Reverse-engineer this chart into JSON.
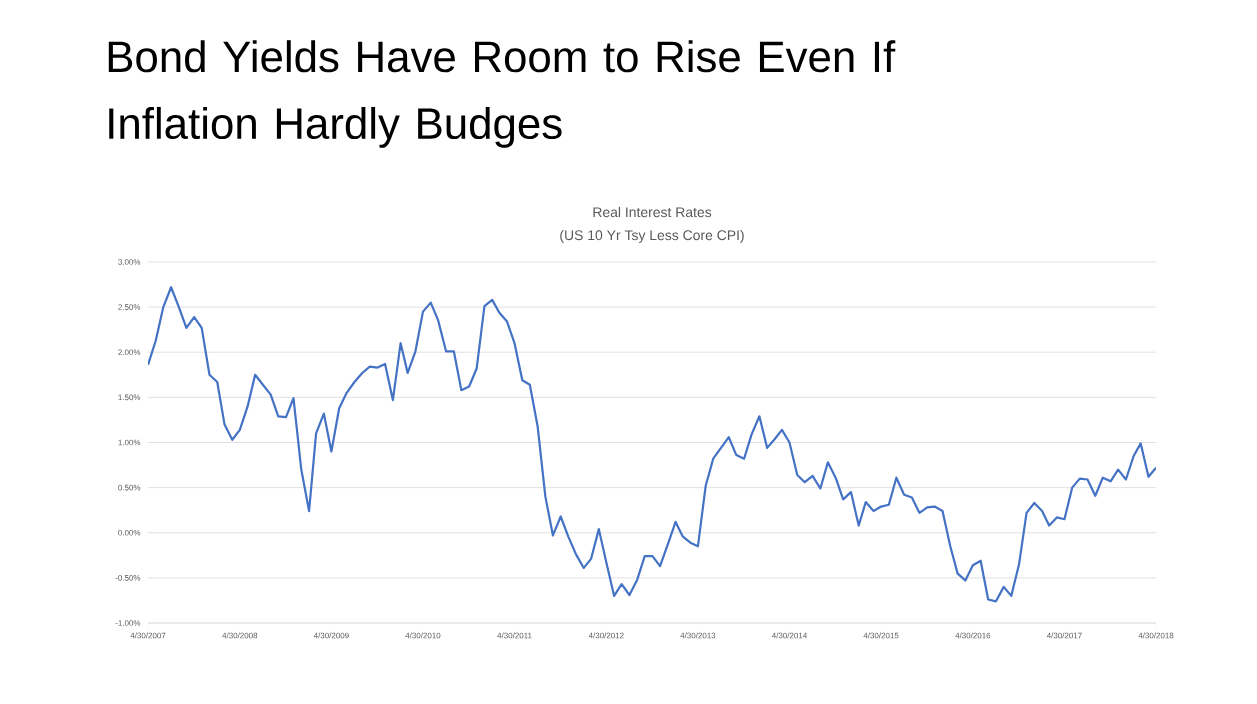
{
  "chart_data": {
    "type": "line",
    "title": "Bond Yields Have Room to Rise Even If Inflation Hardly Budges",
    "subtitle": "Real Interest Rates",
    "annotations": [
      "(US 10 Yr Tsy Less Core CPI)"
    ],
    "color": "#4472c4",
    "grid": "y",
    "xlim": [
      "2007-04-30",
      "2018-04-30"
    ],
    "xticks": [
      {
        "value": "2007-04-30",
        "label": "4/30/2007"
      },
      {
        "value": "2008-04-30",
        "label": "4/30/2008"
      },
      {
        "value": "2009-04-30",
        "label": "4/30/2009"
      },
      {
        "value": "2010-04-30",
        "label": "4/30/2010"
      },
      {
        "value": "2011-04-30",
        "label": "4/30/2011"
      },
      {
        "value": "2012-04-30",
        "label": "4/30/2012"
      },
      {
        "value": "2013-04-30",
        "label": "4/30/2013"
      },
      {
        "value": "2014-04-30",
        "label": "4/30/2014"
      },
      {
        "value": "2015-04-30",
        "label": "4/30/2015"
      },
      {
        "value": "2016-04-30",
        "label": "4/30/2016"
      },
      {
        "value": "2017-04-30",
        "label": "4/30/2017"
      },
      {
        "value": "2018-04-30",
        "label": "4/30/2018"
      }
    ],
    "ylim": [
      -1,
      3
    ],
    "yticks": [
      {
        "value": 3,
        "label": "3.00%"
      },
      {
        "value": 2.5,
        "label": "2.50%"
      },
      {
        "value": 2,
        "label": "2.00%"
      },
      {
        "value": 1.5,
        "label": "1.50%"
      },
      {
        "value": 1,
        "label": "1.00%"
      },
      {
        "value": 0.5,
        "label": "0.50%"
      },
      {
        "value": 0,
        "label": "0.00%"
      },
      {
        "value": -0.5,
        "label": "-0.50%"
      },
      {
        "value": -1,
        "label": "-1.00%"
      }
    ],
    "x": [
      "2007-04-30",
      "2007-05-31",
      "2007-06-30",
      "2007-07-31",
      "2007-08-31",
      "2007-09-30",
      "2007-10-31",
      "2007-11-30",
      "2007-12-31",
      "2008-01-31",
      "2008-02-29",
      "2008-03-31",
      "2008-04-30",
      "2008-05-31",
      "2008-06-30",
      "2008-07-31",
      "2008-08-31",
      "2008-09-30",
      "2008-10-31",
      "2008-11-30",
      "2008-12-31",
      "2009-01-31",
      "2009-02-28",
      "2009-03-31",
      "2009-04-30",
      "2009-05-31",
      "2009-06-30",
      "2009-07-31",
      "2009-08-31",
      "2009-09-30",
      "2009-10-31",
      "2009-11-30",
      "2009-12-31",
      "2010-01-31",
      "2010-02-28",
      "2010-03-31",
      "2010-04-30",
      "2010-05-31",
      "2010-06-30",
      "2010-07-31",
      "2010-08-31",
      "2010-09-30",
      "2010-10-31",
      "2010-11-30",
      "2010-12-15",
      "2010-12-31",
      "2011-01-31",
      "2011-02-28",
      "2011-03-31",
      "2011-04-30",
      "2011-05-31",
      "2011-06-30",
      "2011-07-31",
      "2011-08-31",
      "2011-09-30",
      "2011-10-31",
      "2011-11-30",
      "2011-12-31",
      "2012-01-31",
      "2012-02-29",
      "2012-03-31",
      "2012-04-30",
      "2012-05-31",
      "2012-06-30",
      "2012-07-31",
      "2012-08-31",
      "2012-09-30",
      "2012-10-31",
      "2012-11-30",
      "2012-12-31",
      "2013-01-31",
      "2013-02-28",
      "2013-03-31",
      "2013-04-30",
      "2013-05-31",
      "2013-06-30",
      "2013-07-31",
      "2013-08-31",
      "2013-09-30",
      "2013-10-31",
      "2013-11-30",
      "2013-12-31",
      "2014-01-31",
      "2014-02-28",
      "2014-03-31",
      "2014-04-30",
      "2014-05-31",
      "2014-06-30",
      "2014-07-31",
      "2014-08-31",
      "2014-09-30",
      "2014-10-31",
      "2014-11-30",
      "2014-12-31",
      "2015-01-31",
      "2015-02-28",
      "2015-03-31",
      "2015-04-30",
      "2015-05-31",
      "2015-06-30",
      "2015-07-31",
      "2015-08-31",
      "2015-09-30",
      "2015-10-31",
      "2015-11-30",
      "2015-12-31",
      "2016-01-31",
      "2016-02-29",
      "2016-03-31",
      "2016-04-30",
      "2016-05-31",
      "2016-06-30",
      "2016-07-31",
      "2016-08-31",
      "2016-09-30",
      "2016-10-31",
      "2016-11-30",
      "2016-12-31",
      "2017-01-31",
      "2017-02-28",
      "2017-03-31",
      "2017-04-30",
      "2017-05-31",
      "2017-06-30",
      "2017-07-31",
      "2017-08-31",
      "2017-09-30",
      "2017-10-31",
      "2017-11-30",
      "2017-12-31",
      "2018-01-31",
      "2018-02-28",
      "2018-03-31",
      "2018-04-30"
    ],
    "values": [
      1.86,
      2.13,
      2.5,
      2.72,
      2.5,
      2.27,
      2.39,
      2.27,
      1.75,
      1.67,
      1.2,
      1.03,
      1.14,
      1.4,
      1.75,
      1.64,
      1.53,
      1.29,
      1.28,
      1.49,
      0.7,
      0.24,
      1.1,
      1.32,
      0.9,
      1.38,
      1.55,
      1.67,
      1.77,
      1.84,
      1.83,
      1.87,
      1.47,
      2.1,
      1.77,
      2.01,
      2.45,
      2.55,
      2.35,
      2.01,
      2.01,
      1.58,
      1.62,
      1.82,
      2.15,
      2.51,
      2.58,
      2.44,
      2.34,
      2.1,
      1.69,
      1.64,
      1.18,
      0.4,
      -0.03,
      0.18,
      -0.04,
      -0.24,
      -0.39,
      -0.29,
      0.04,
      -0.33,
      -0.7,
      -0.57,
      -0.69,
      -0.52,
      -0.26,
      -0.26,
      -0.37,
      -0.13,
      0.12,
      -0.04,
      -0.11,
      -0.15,
      0.52,
      0.82,
      0.94,
      1.06,
      0.86,
      0.82,
      1.09,
      1.29,
      0.94,
      1.03,
      1.14,
      1.0,
      0.64,
      0.56,
      0.63,
      0.49,
      0.78,
      0.61,
      0.37,
      0.45,
      0.08,
      0.34,
      0.24,
      0.29,
      0.31,
      0.61,
      0.42,
      0.39,
      0.22,
      0.28,
      0.29,
      0.24,
      -0.15,
      -0.45,
      -0.53,
      -0.36,
      -0.31,
      -0.74,
      -0.76,
      -0.6,
      -0.7,
      -0.35,
      0.22,
      0.33,
      0.24,
      0.08,
      0.17,
      0.15,
      0.5,
      0.6,
      0.59,
      0.41,
      0.61,
      0.57,
      0.7,
      0.59,
      0.85,
      0.99,
      0.62,
      0.72
    ]
  }
}
